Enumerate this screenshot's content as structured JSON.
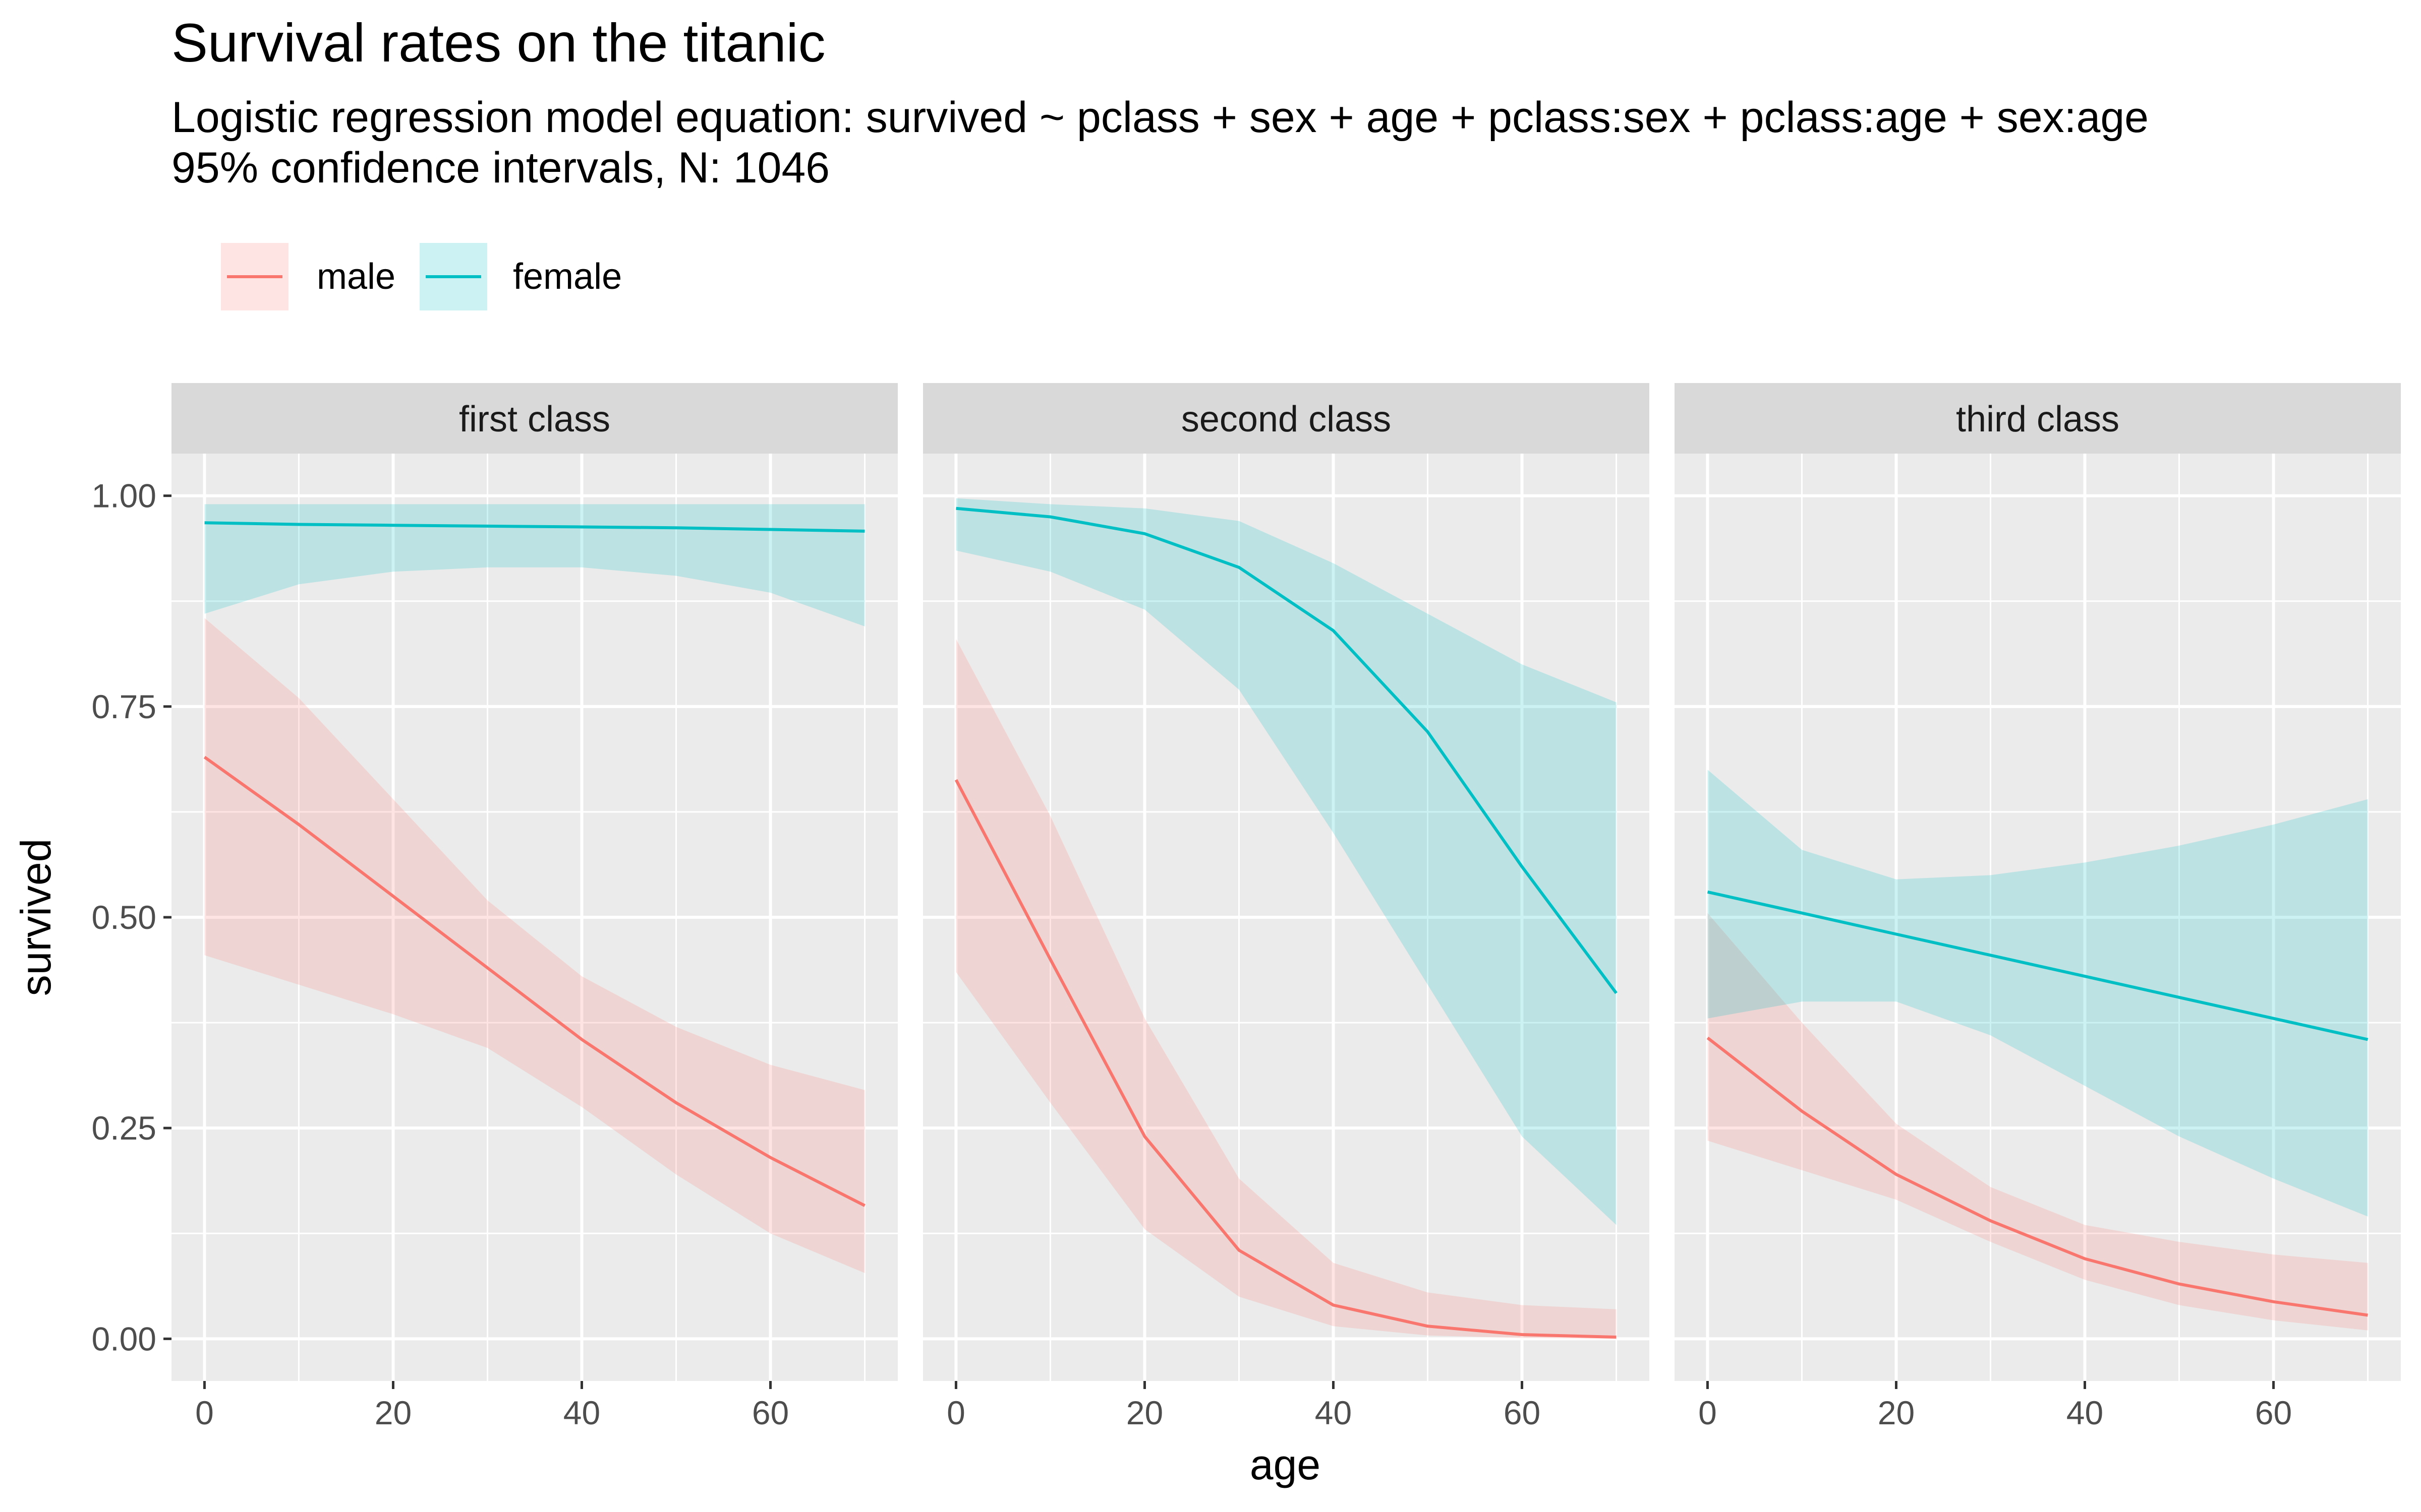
{
  "chart_data": {
    "type": "line",
    "title": "Survival rates on the titanic",
    "subtitle_lines": [
      "Logistic regression model equation: survived ~ pclass + sex + age + pclass:sex + pclass:age + sex:age",
      "95% confidence intervals, N: 1046"
    ],
    "xlabel": "age",
    "ylabel": "survived",
    "xlim": [
      -3.5,
      73.5
    ],
    "ylim": [
      -0.05,
      1.05
    ],
    "x_ticks": [
      "0",
      "20",
      "40",
      "60"
    ],
    "x_tick_values": [
      0,
      20,
      40,
      60
    ],
    "y_ticks": [
      "0.00",
      "0.25",
      "0.50",
      "0.75",
      "1.00"
    ],
    "y_tick_values": [
      0,
      0.25,
      0.5,
      0.75,
      1.0
    ],
    "grid": true,
    "legend_position": "top-left",
    "legend": [
      {
        "label": "male",
        "color": "#F8766D"
      },
      {
        "label": "female",
        "color": "#00BFC4"
      }
    ],
    "x": [
      0,
      10,
      20,
      30,
      40,
      50,
      60,
      70
    ],
    "panels": [
      {
        "label": "first class",
        "series": [
          {
            "name": "male",
            "color": "#F8766D",
            "values": [
              0.69,
              0.61,
              0.525,
              0.44,
              0.355,
              0.28,
              0.215,
              0.158
            ],
            "lower": [
              0.455,
              0.42,
              0.385,
              0.345,
              0.275,
              0.195,
              0.125,
              0.078
            ],
            "upper": [
              0.855,
              0.76,
              0.64,
              0.52,
              0.43,
              0.37,
              0.325,
              0.295
            ]
          },
          {
            "name": "female",
            "color": "#00BFC4",
            "values": [
              0.968,
              0.966,
              0.965,
              0.964,
              0.963,
              0.962,
              0.96,
              0.958
            ],
            "lower": [
              0.86,
              0.895,
              0.91,
              0.915,
              0.915,
              0.905,
              0.885,
              0.845
            ],
            "upper": [
              0.99,
              0.99,
              0.99,
              0.99,
              0.99,
              0.99,
              0.99,
              0.99
            ]
          }
        ]
      },
      {
        "label": "second class",
        "series": [
          {
            "name": "male",
            "color": "#F8766D",
            "values": [
              0.663,
              0.45,
              0.24,
              0.105,
              0.04,
              0.015,
              0.005,
              0.002
            ],
            "lower": [
              0.435,
              0.28,
              0.13,
              0.05,
              0.015,
              0.004,
              0.001,
              0.0
            ],
            "upper": [
              0.83,
              0.62,
              0.38,
              0.19,
              0.09,
              0.055,
              0.04,
              0.035
            ]
          },
          {
            "name": "female",
            "color": "#00BFC4",
            "values": [
              0.985,
              0.975,
              0.955,
              0.915,
              0.84,
              0.72,
              0.56,
              0.41
            ],
            "lower": [
              0.935,
              0.91,
              0.865,
              0.77,
              0.6,
              0.42,
              0.24,
              0.135
            ],
            "upper": [
              0.997,
              0.99,
              0.985,
              0.97,
              0.92,
              0.86,
              0.8,
              0.755
            ]
          }
        ]
      },
      {
        "label": "third class",
        "series": [
          {
            "name": "male",
            "color": "#F8766D",
            "values": [
              0.357,
              0.27,
              0.195,
              0.14,
              0.095,
              0.065,
              0.044,
              0.028
            ],
            "lower": [
              0.235,
              0.2,
              0.165,
              0.115,
              0.07,
              0.04,
              0.022,
              0.01
            ],
            "upper": [
              0.505,
              0.375,
              0.255,
              0.18,
              0.135,
              0.115,
              0.1,
              0.09
            ]
          },
          {
            "name": "female",
            "color": "#00BFC4",
            "values": [
              0.53,
              0.505,
              0.48,
              0.455,
              0.43,
              0.405,
              0.38,
              0.355
            ],
            "lower": [
              0.38,
              0.4,
              0.4,
              0.36,
              0.3,
              0.24,
              0.19,
              0.145
            ],
            "upper": [
              0.675,
              0.58,
              0.545,
              0.55,
              0.565,
              0.585,
              0.61,
              0.64
            ]
          }
        ]
      }
    ]
  }
}
